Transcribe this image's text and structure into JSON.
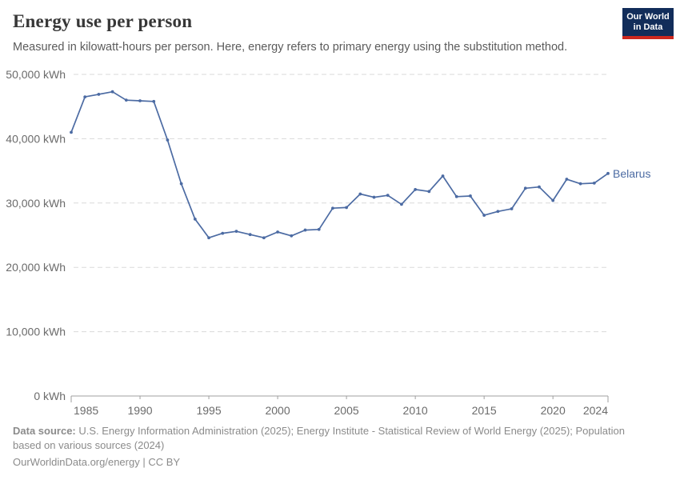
{
  "header": {
    "title": "Energy use per person",
    "subtitle": "Measured in kilowatt-hours per person. Here, energy refers to primary energy using the substitution method."
  },
  "logo": {
    "line1": "Our World",
    "line2": "in Data",
    "bg_color": "#122d5a",
    "bar_color": "#cd281e"
  },
  "chart_data": {
    "type": "line",
    "title": "Energy use per person",
    "unit": "kWh",
    "x_range": [
      1985,
      2024
    ],
    "ylim": [
      0,
      50000
    ],
    "grid": "horizontal-dashed",
    "legend_position": "end-of-line",
    "line_color": "#4c6ba3",
    "axis_color": "#9f9f9f",
    "grid_color": "#dadada",
    "tick_label_color": "#6b6b6b",
    "xticks": [
      1985,
      1990,
      1995,
      2000,
      2005,
      2010,
      2015,
      2020,
      2024
    ],
    "yticks": [
      {
        "value": 0,
        "label": "0 kWh"
      },
      {
        "value": 10000,
        "label": "10,000 kWh"
      },
      {
        "value": 20000,
        "label": "20,000 kWh"
      },
      {
        "value": 30000,
        "label": "30,000 kWh"
      },
      {
        "value": 40000,
        "label": "40,000 kWh"
      },
      {
        "value": 50000,
        "label": "50,000 kWh"
      }
    ],
    "series": [
      {
        "name": "Belarus",
        "x": [
          1985,
          1986,
          1987,
          1988,
          1989,
          1990,
          1991,
          1992,
          1993,
          1994,
          1995,
          1996,
          1997,
          1998,
          1999,
          2000,
          2001,
          2002,
          2003,
          2004,
          2005,
          2006,
          2007,
          2008,
          2009,
          2010,
          2011,
          2012,
          2013,
          2014,
          2015,
          2016,
          2017,
          2018,
          2019,
          2020,
          2021,
          2022,
          2023,
          2024
        ],
        "values": [
          41000,
          46500,
          46900,
          47300,
          46000,
          45900,
          45800,
          39800,
          33000,
          27500,
          24600,
          25300,
          25600,
          25100,
          24600,
          25500,
          24900,
          25800,
          25900,
          29200,
          29300,
          31400,
          30900,
          31200,
          29800,
          32100,
          31800,
          34200,
          31000,
          31100,
          28100,
          28700,
          29100,
          32300,
          32500,
          30400,
          33700,
          33000,
          33100,
          34600
        ]
      }
    ]
  },
  "footer": {
    "source_label": "Data source:",
    "source_text": " U.S. Energy Information Administration (2025); Energy Institute - Statistical Review of World Energy (2025); Population based on various sources (2024)",
    "url_text": "OurWorldinData.org/energy",
    "divider": " | ",
    "license_text": "CC BY"
  }
}
